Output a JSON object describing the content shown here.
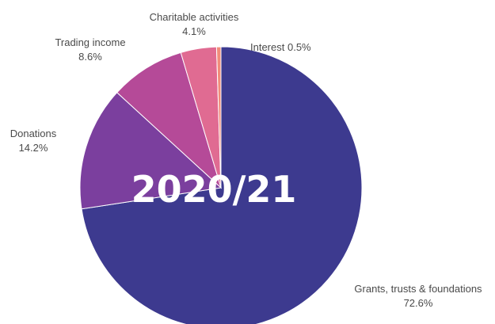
{
  "chart_data": {
    "type": "pie",
    "center_label": "2020/21",
    "slices": [
      {
        "name": "Grants, trusts & foundations",
        "pct_label": "72.6%",
        "value": 72.6,
        "color": "#3d3a8f"
      },
      {
        "name": "Donations",
        "pct_label": "14.2%",
        "value": 14.2,
        "color": "#7b3f9e"
      },
      {
        "name": "Trading income",
        "pct_label": "8.6%",
        "value": 8.6,
        "color": "#b54a98"
      },
      {
        "name": "Charitable activities",
        "pct_label": "4.1%",
        "value": 4.1,
        "color": "#e06b92"
      },
      {
        "name": "Interest",
        "pct_label": "0.5%",
        "value": 0.5,
        "color": "#f28c7a"
      }
    ],
    "order_clockwise_from_top": [
      "Grants, trusts & foundations",
      "Donations",
      "Trading income",
      "Charitable activities",
      "Interest"
    ]
  }
}
